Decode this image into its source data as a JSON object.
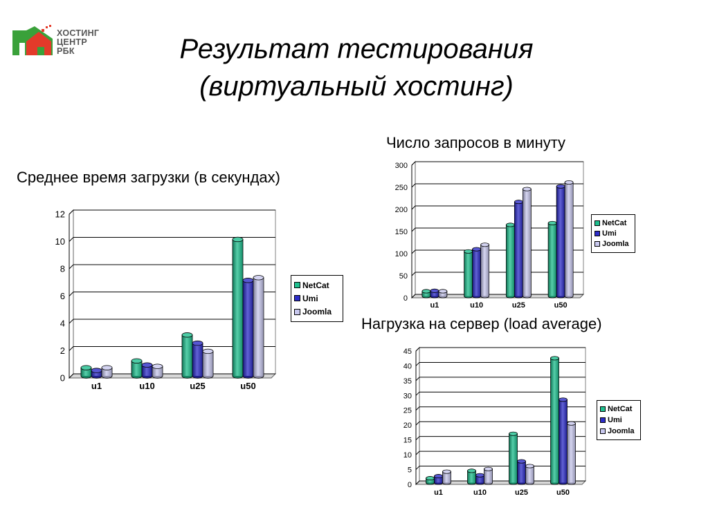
{
  "logo": {
    "line1": "ХОСТИНГ",
    "line2": "ЦЕНТР",
    "line3": "РБК"
  },
  "title": {
    "line1": "Результат тестирования",
    "line2": "(виртуальный хостинг)"
  },
  "colors": {
    "NetCat": "#1fbf8e",
    "Umi": "#2d2dc8",
    "Joomla": "#c8c8ee"
  },
  "chart_data": [
    {
      "type": "bar",
      "title": "Среднее время загрузки (в секундах)",
      "categories": [
        "u1",
        "u10",
        "u25",
        "u50"
      ],
      "series": [
        {
          "name": "NetCat",
          "values": [
            0.6,
            1.1,
            3.0,
            10.0
          ]
        },
        {
          "name": "Umi",
          "values": [
            0.4,
            0.8,
            2.4,
            7.0
          ]
        },
        {
          "name": "Joomla",
          "values": [
            0.6,
            0.7,
            1.8,
            7.2
          ]
        }
      ],
      "ylim": [
        0,
        12
      ],
      "yticks": [
        "0",
        "2",
        "4",
        "6",
        "8",
        "10",
        "12"
      ],
      "grid": true,
      "legend": "right"
    },
    {
      "type": "bar",
      "title": "Число запросов в минуту",
      "categories": [
        "u1",
        "u10",
        "u25",
        "u50"
      ],
      "series": [
        {
          "name": "NetCat",
          "values": [
            11,
            101,
            161,
            165
          ]
        },
        {
          "name": "Umi",
          "values": [
            12,
            106,
            213,
            248
          ]
        },
        {
          "name": "Joomla",
          "values": [
            11,
            116,
            242,
            257
          ]
        }
      ],
      "ylim": [
        0,
        300
      ],
      "yticks": [
        "0",
        "50",
        "100",
        "150",
        "200",
        "250",
        "300"
      ],
      "grid": true,
      "legend": "right"
    },
    {
      "type": "bar",
      "title": "Нагрузка на сервер (load average)",
      "categories": [
        "u1",
        "u10",
        "u25",
        "u50"
      ],
      "series": [
        {
          "name": "NetCat",
          "values": [
            1.5,
            4,
            16.5,
            42
          ]
        },
        {
          "name": "Umi",
          "values": [
            2.2,
            2.5,
            7.2,
            28
          ]
        },
        {
          "name": "Joomla",
          "values": [
            3.7,
            4.6,
            5.6,
            20
          ]
        }
      ],
      "ylim": [
        0,
        45
      ],
      "yticks": [
        "0",
        "5",
        "10",
        "15",
        "20",
        "25",
        "30",
        "35",
        "40",
        "45"
      ],
      "grid": true,
      "legend": "right"
    }
  ]
}
